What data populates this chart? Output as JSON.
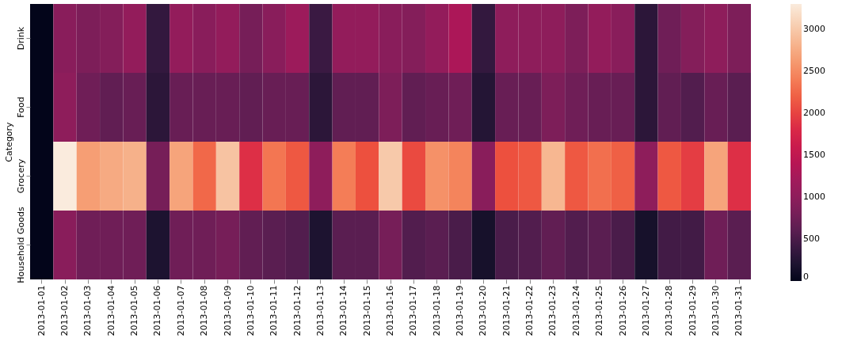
{
  "chart_data": {
    "type": "heatmap",
    "ylabel": "Category",
    "categories": [
      "2013-01-01",
      "2013-01-02",
      "2013-01-03",
      "2013-01-04",
      "2013-01-05",
      "2013-01-06",
      "2013-01-07",
      "2013-01-08",
      "2013-01-09",
      "2013-01-10",
      "2013-01-11",
      "2013-01-12",
      "2013-01-13",
      "2013-01-14",
      "2013-01-15",
      "2013-01-16",
      "2013-01-17",
      "2013-01-18",
      "2013-01-19",
      "2013-01-20",
      "2013-01-21",
      "2013-01-22",
      "2013-01-23",
      "2013-01-24",
      "2013-01-25",
      "2013-01-26",
      "2013-01-27",
      "2013-01-28",
      "2013-01-29",
      "2013-01-30",
      "2013-01-31"
    ],
    "y_categories": [
      "Drink",
      "Food",
      "Grocery",
      "Household Goods"
    ],
    "cells": [
      [
        0,
        950,
        850,
        900,
        1050,
        350,
        1050,
        950,
        1050,
        800,
        950,
        1150,
        400,
        1050,
        1050,
        950,
        900,
        1050,
        1300,
        350,
        1000,
        1000,
        1000,
        850,
        1050,
        950,
        300,
        750,
        900,
        1000,
        850
      ],
      [
        0,
        1000,
        750,
        650,
        700,
        300,
        700,
        700,
        700,
        650,
        700,
        700,
        300,
        650,
        650,
        850,
        650,
        700,
        750,
        250,
        700,
        700,
        850,
        750,
        700,
        700,
        300,
        650,
        550,
        700,
        600
      ],
      [
        0,
        3300,
        2650,
        2750,
        2800,
        800,
        2700,
        2250,
        2950,
        1850,
        2350,
        2150,
        1000,
        2400,
        2100,
        3000,
        2050,
        2550,
        2450,
        950,
        2100,
        2150,
        2850,
        2150,
        2300,
        2200,
        1000,
        2150,
        1950,
        2700,
        1850
      ],
      [
        0,
        950,
        750,
        750,
        750,
        200,
        750,
        750,
        800,
        650,
        600,
        550,
        200,
        600,
        600,
        800,
        550,
        600,
        500,
        150,
        500,
        550,
        650,
        550,
        600,
        500,
        150,
        450,
        450,
        750,
        600
      ]
    ],
    "clim": [
      0,
      3300
    ],
    "cticks": [
      0,
      500,
      1000,
      1500,
      2000,
      2500,
      3000
    ]
  }
}
